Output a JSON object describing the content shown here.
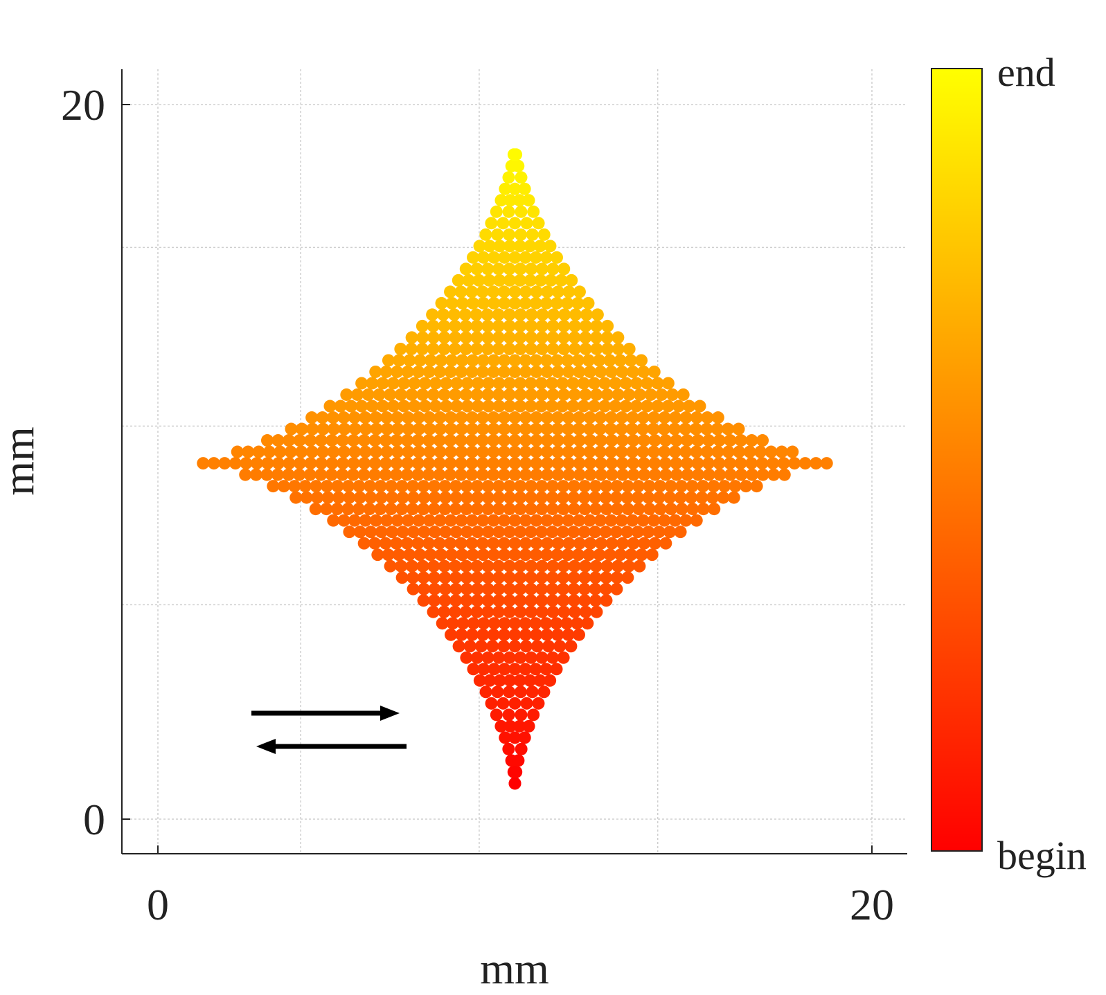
{
  "chart_data": {
    "type": "scatter",
    "title": "",
    "xlabel": "mm",
    "ylabel": "mm",
    "xlim": [
      -1,
      21
    ],
    "ylim": [
      -1,
      21
    ],
    "x_ticks": [
      0,
      20
    ],
    "y_ticks": [
      0,
      20
    ],
    "x_tick_labels": [
      "0",
      "20"
    ],
    "y_tick_labels": [
      "0",
      "20"
    ],
    "grid": true,
    "grid_x": [
      0,
      4,
      9,
      14,
      20
    ],
    "grid_y": [
      0,
      6,
      11,
      16,
      20
    ],
    "shape": {
      "description_values": "astroid-like four-point star of points raster-scanned in rows",
      "center": [
        10,
        10
      ],
      "top_tip_y": 18.9,
      "bottom_tip_y": 1.0,
      "left_tip_x": 0.9,
      "right_tip_x": 19.1,
      "row_spacing": 0.32,
      "point_spacing": 0.3
    },
    "colormap": [
      "#ff0000",
      "#ff8000",
      "#ffff00"
    ],
    "colorbar": {
      "min_label": "begin",
      "max_label": "end"
    },
    "annotation_arrows": [
      {
        "direction": "right"
      },
      {
        "direction": "left"
      }
    ]
  }
}
